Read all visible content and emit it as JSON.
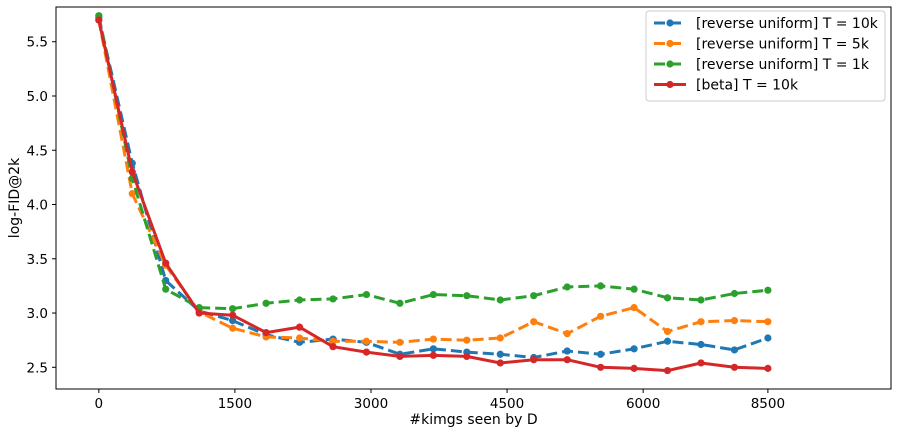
{
  "chart_data": {
    "type": "line",
    "xlabel": "#kimgs seen by D",
    "ylabel": "log-FID@2k",
    "xlim": [
      -480,
      8880
    ],
    "ylim": [
      2.3,
      5.82
    ],
    "xticks": [
      {
        "value": 0,
        "label": "0"
      },
      {
        "value": 1500,
        "label": "1500"
      },
      {
        "value": 3000,
        "label": "3000"
      },
      {
        "value": 4500,
        "label": "4500"
      },
      {
        "value": 6000,
        "label": "6000"
      },
      {
        "value": 8500,
        "label": "8500"
      }
    ],
    "yticks": [
      {
        "value": 2.5,
        "label": "2.5"
      },
      {
        "value": 3.0,
        "label": "3.0"
      },
      {
        "value": 3.5,
        "label": "3.5"
      },
      {
        "value": 4.0,
        "label": "4.0"
      },
      {
        "value": 4.5,
        "label": "4.5"
      },
      {
        "value": 5.0,
        "label": "5.0"
      },
      {
        "value": 5.5,
        "label": "5.5"
      }
    ],
    "grid": false,
    "legend_position": "top-right",
    "x": [
      0,
      375,
      750,
      1125,
      1500,
      1875,
      2250,
      2625,
      3000,
      3375,
      3750,
      4125,
      4500,
      4875,
      5250,
      5625,
      6000,
      6375,
      6750,
      7125,
      7500
    ],
    "series": [
      {
        "name": "[reverse uniform] T = 10k",
        "color": "#1f77b4",
        "dashed": true,
        "values": [
          5.72,
          4.38,
          3.3,
          3.02,
          2.93,
          2.8,
          2.73,
          2.76,
          2.73,
          2.62,
          2.67,
          2.64,
          2.62,
          2.59,
          2.65,
          2.62,
          2.67,
          2.74,
          2.71,
          2.66,
          2.77
        ]
      },
      {
        "name": "[reverse uniform] T = 5k",
        "color": "#ff7f0e",
        "dashed": true,
        "values": [
          5.7,
          4.1,
          3.44,
          3.01,
          2.86,
          2.78,
          2.77,
          2.74,
          2.74,
          2.73,
          2.76,
          2.75,
          2.77,
          2.92,
          2.81,
          2.97,
          3.05,
          2.83,
          2.92,
          2.93,
          2.92
        ]
      },
      {
        "name": "[reverse uniform] T = 1k",
        "color": "#2ca02c",
        "dashed": true,
        "values": [
          5.74,
          4.24,
          3.22,
          3.05,
          3.04,
          3.09,
          3.12,
          3.13,
          3.17,
          3.09,
          3.17,
          3.16,
          3.12,
          3.16,
          3.24,
          3.25,
          3.22,
          3.14,
          3.12,
          3.18,
          3.21
        ]
      },
      {
        "name": "[beta] T = 10k",
        "color": "#d62728",
        "dashed": false,
        "values": [
          5.7,
          4.3,
          3.46,
          3.0,
          2.98,
          2.82,
          2.87,
          2.69,
          2.64,
          2.6,
          2.61,
          2.6,
          2.54,
          2.57,
          2.57,
          2.5,
          2.49,
          2.47,
          2.54,
          2.5,
          2.49
        ]
      }
    ]
  }
}
